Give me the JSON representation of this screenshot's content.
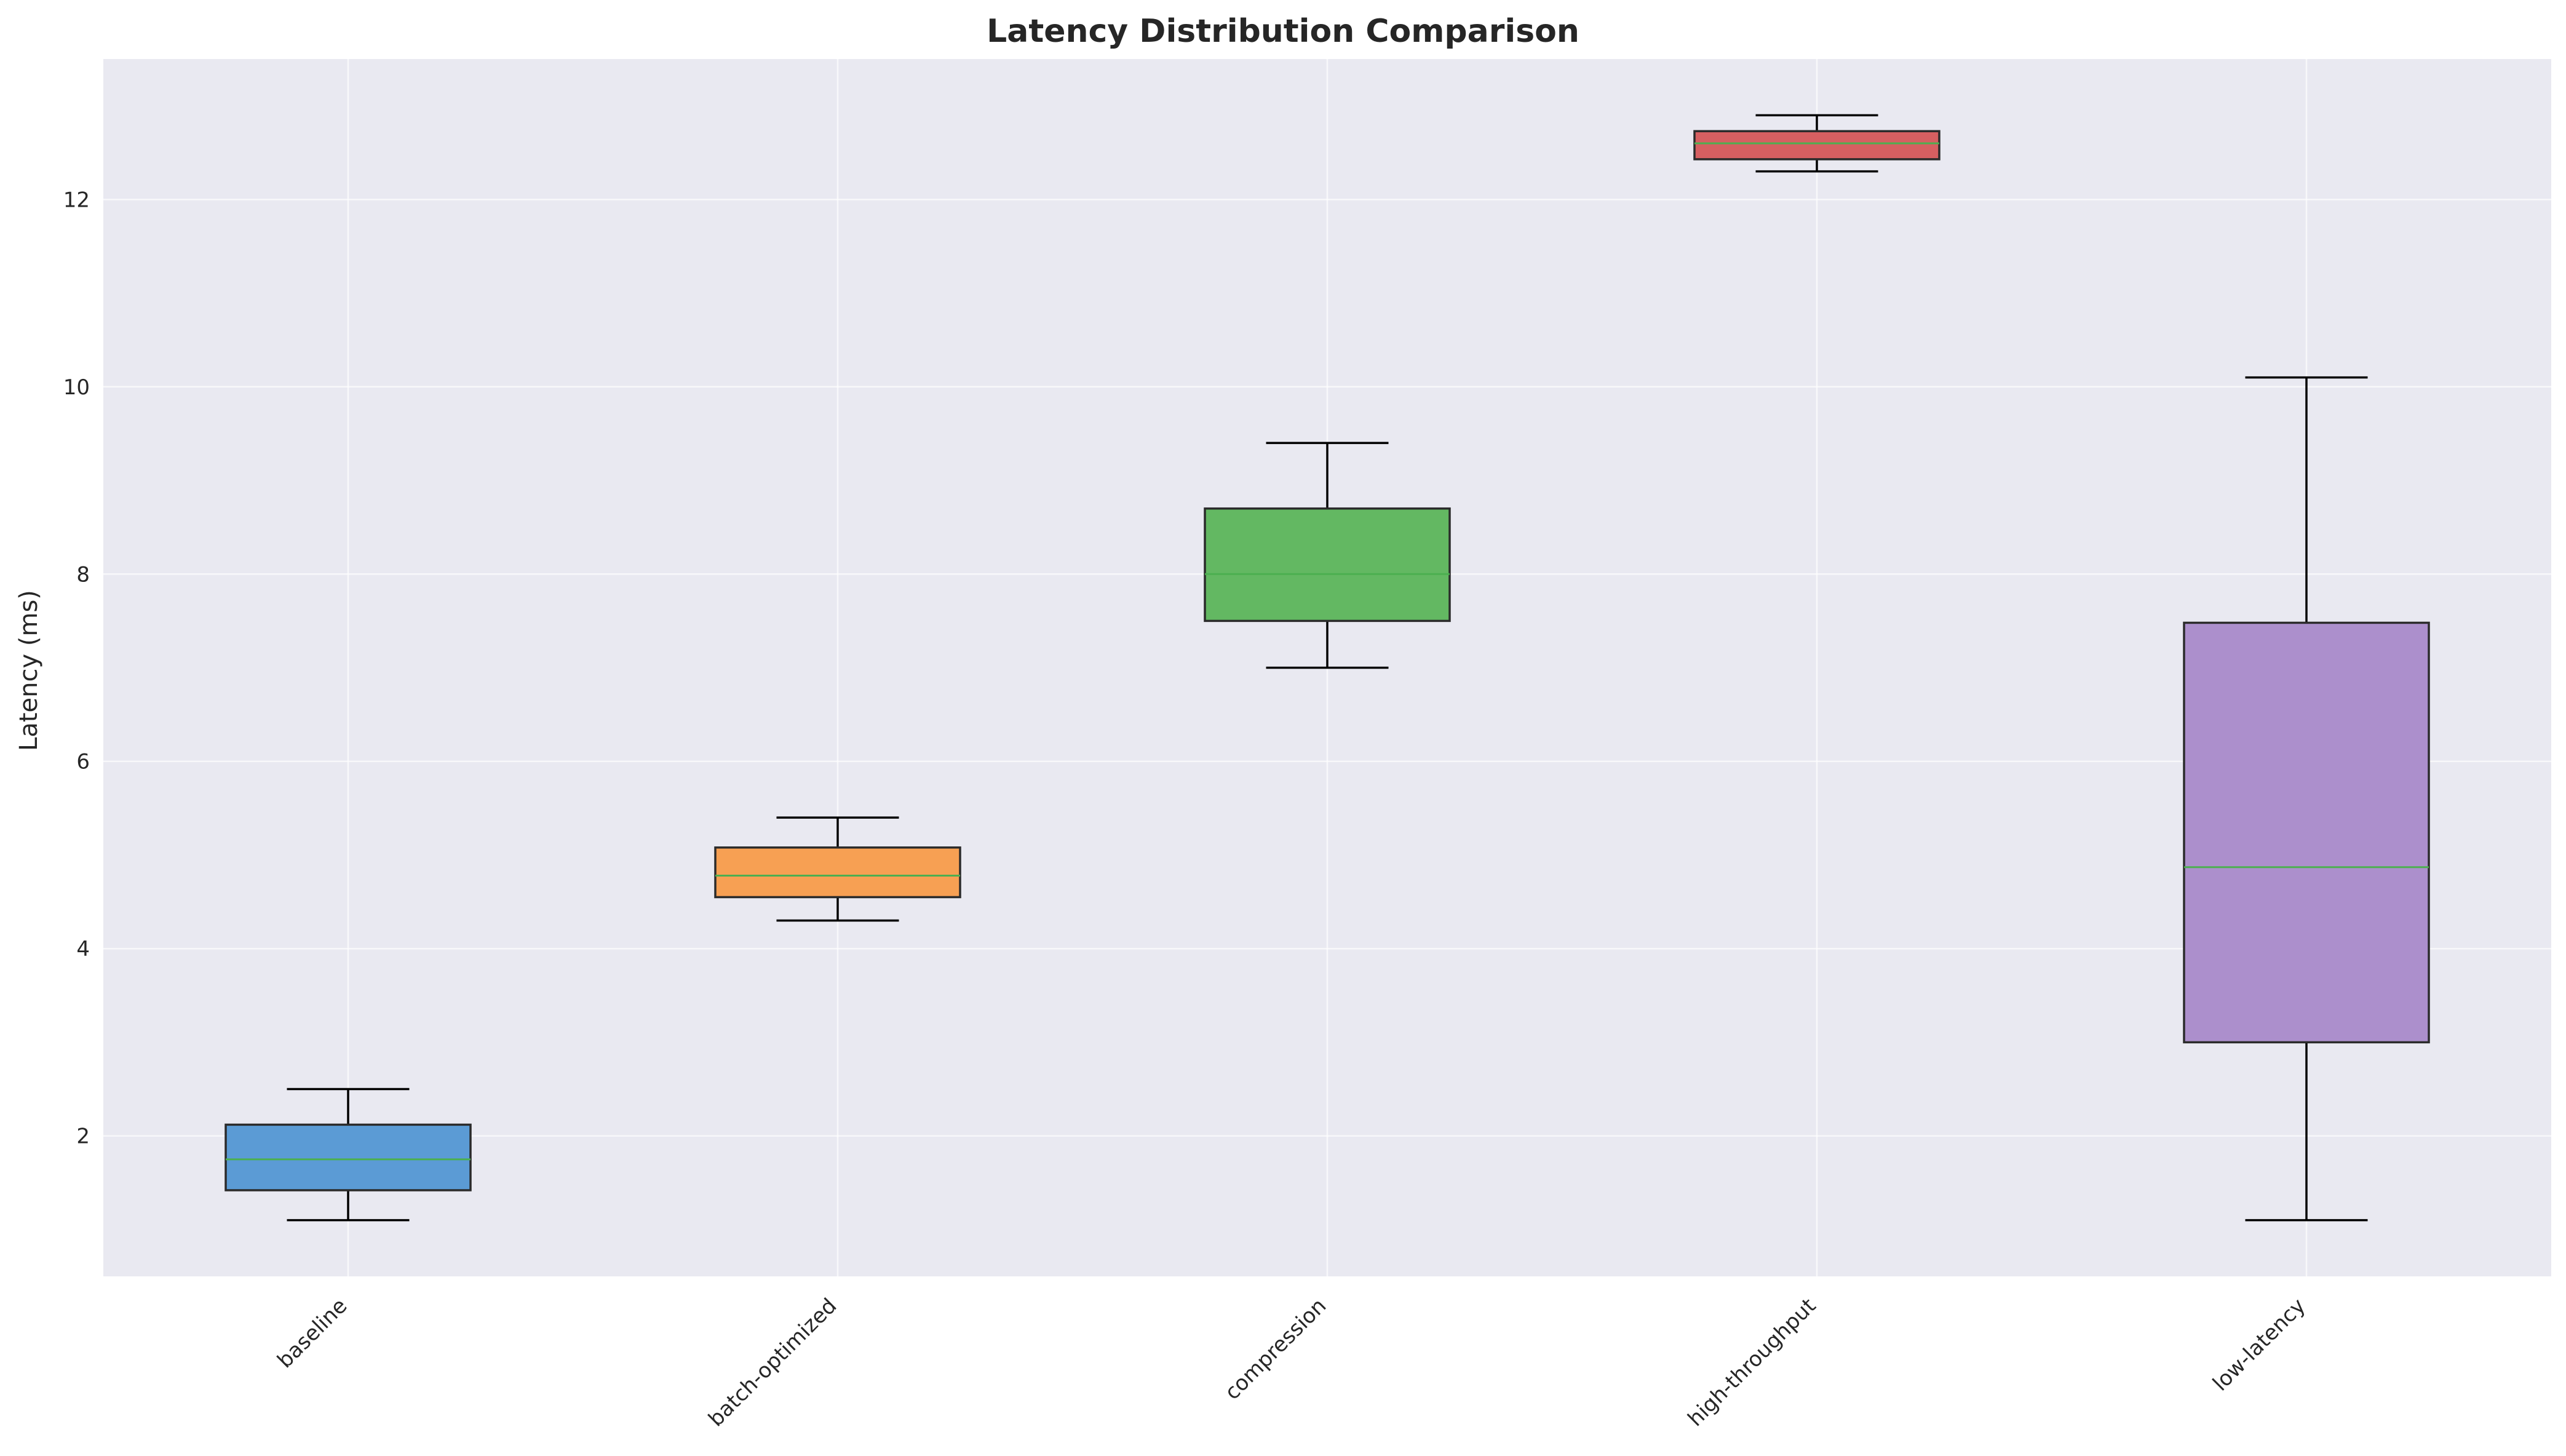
{
  "chart_data": {
    "type": "box",
    "title": "Latency Distribution Comparison",
    "xlabel": "",
    "ylabel": "Latency (ms)",
    "ylim": [
      0.5,
      13.5
    ],
    "yticks": [
      2,
      4,
      6,
      8,
      10,
      12
    ],
    "grid": true,
    "legend": "none",
    "categories": [
      "baseline",
      "batch-optimized",
      "compression",
      "high-throughput",
      "low-latency"
    ],
    "boxes": [
      {
        "category": "baseline",
        "whislo": 1.1,
        "q1": 1.42,
        "med": 1.75,
        "q3": 2.12,
        "whishi": 2.5,
        "color": "#5b9bd5"
      },
      {
        "category": "batch-optimized",
        "whislo": 4.3,
        "q1": 4.55,
        "med": 4.78,
        "q3": 5.08,
        "whishi": 5.4,
        "color": "#f7a053"
      },
      {
        "category": "compression",
        "whislo": 7.0,
        "q1": 7.5,
        "med": 8.0,
        "q3": 8.7,
        "whishi": 9.4,
        "color": "#63b862"
      },
      {
        "category": "high-throughput",
        "whislo": 12.3,
        "q1": 12.43,
        "med": 12.6,
        "q3": 12.73,
        "whishi": 12.9,
        "color": "#d65f61"
      },
      {
        "category": "low-latency",
        "whislo": 1.1,
        "q1": 3.0,
        "med": 4.87,
        "q3": 7.48,
        "whishi": 10.1,
        "color": "#ac8fcc"
      }
    ]
  },
  "style": {
    "plot_background": "#e9e9f1",
    "grid_color": "#ffffff",
    "median_color": "#4caf50"
  }
}
